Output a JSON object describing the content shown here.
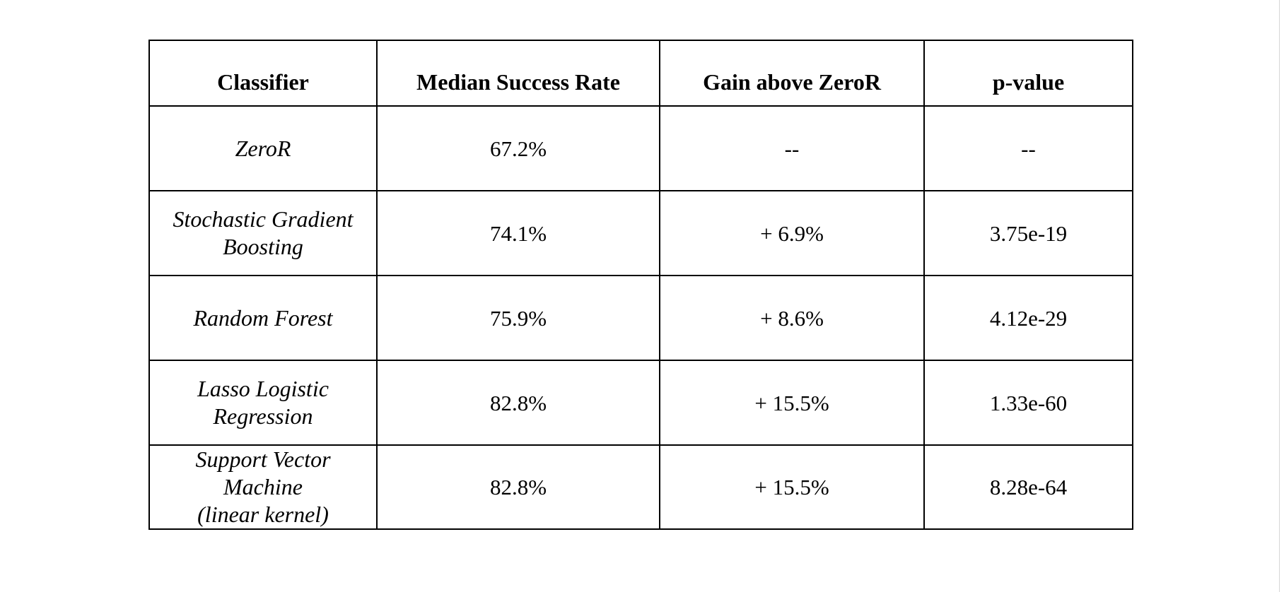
{
  "table": {
    "headers": [
      "Classifier",
      "Median Success Rate",
      "Gain above ZeroR",
      "p-value"
    ],
    "rows": [
      {
        "classifier": "ZeroR",
        "median_success_rate": "67.2%",
        "gain_above_zeror": "--",
        "p_value": "--"
      },
      {
        "classifier": "Stochastic Gradient\nBoosting",
        "median_success_rate": "74.1%",
        "gain_above_zeror": "+ 6.9%",
        "p_value": "3.75e-19"
      },
      {
        "classifier": "Random Forest",
        "median_success_rate": "75.9%",
        "gain_above_zeror": "+ 8.6%",
        "p_value": "4.12e-29"
      },
      {
        "classifier": "Lasso Logistic\nRegression",
        "median_success_rate": "82.8%",
        "gain_above_zeror": "+ 15.5%",
        "p_value": "1.33e-60"
      },
      {
        "classifier": "Support Vector\nMachine\n(linear kernel)",
        "median_success_rate": "82.8%",
        "gain_above_zeror": "+ 15.5%",
        "p_value": "8.28e-64"
      }
    ]
  }
}
